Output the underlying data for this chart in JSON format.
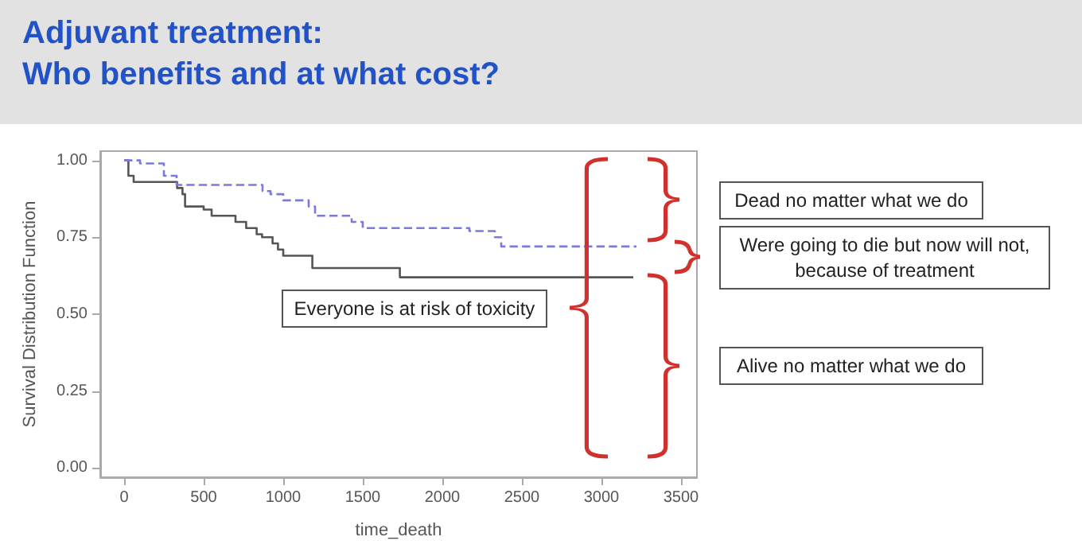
{
  "chart_data": {
    "type": "step",
    "title": "Adjuvant treatment:\nWho benefits and at what cost?",
    "xlabel": "time_death",
    "ylabel": "Survival Distribution Function",
    "xlim": [
      -150,
      3600
    ],
    "ylim": [
      -0.03,
      1.03
    ],
    "xticks": [
      0,
      500,
      1000,
      1500,
      2000,
      2500,
      3000,
      3500
    ],
    "yticks": [
      {
        "value": 0,
        "label": "0.00"
      },
      {
        "value": 0.25,
        "label": "0.25"
      },
      {
        "value": 0.5,
        "label": "0.50"
      },
      {
        "value": 0.75,
        "label": "0.75"
      },
      {
        "value": 1,
        "label": "1.00"
      }
    ],
    "grid": false,
    "marker": "none",
    "series": [
      {
        "color": "#555555",
        "line_style": "solid",
        "x": [
          0,
          27,
          60,
          333,
          367,
          383,
          500,
          550,
          700,
          767,
          833,
          867,
          933,
          967,
          1000,
          1183,
          1733,
          3200
        ],
        "values": [
          1,
          0.95,
          0.93,
          0.91,
          0.89,
          0.85,
          0.84,
          0.82,
          0.8,
          0.78,
          0.76,
          0.75,
          0.73,
          0.71,
          0.69,
          0.65,
          0.62,
          0.62
        ]
      },
      {
        "color": "#7b7bdc",
        "line_style": "dashed",
        "x": [
          0,
          100,
          250,
          330,
          870,
          920,
          1000,
          1160,
          1200,
          1430,
          1500,
          2170,
          2330,
          2370,
          3220
        ],
        "values": [
          1,
          0.99,
          0.95,
          0.92,
          0.9,
          0.89,
          0.87,
          0.85,
          0.82,
          0.8,
          0.78,
          0.77,
          0.75,
          0.72,
          0.72
        ]
      }
    ],
    "annotations": [
      "Everyone is at risk of toxicity",
      "Dead no matter what we do",
      "Were going to die but now will not,\nbecause of treatment",
      "Alive no matter what we do"
    ]
  }
}
